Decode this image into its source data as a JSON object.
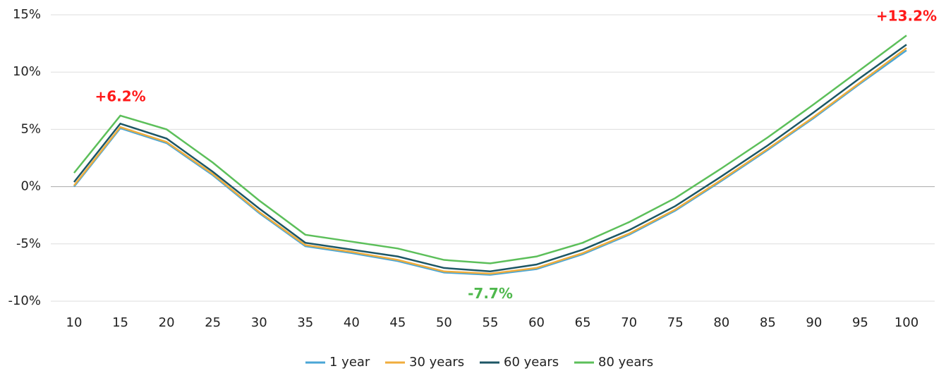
{
  "chart_data": {
    "type": "line",
    "categories": [
      "10",
      "15",
      "20",
      "25",
      "30",
      "35",
      "40",
      "45",
      "50",
      "55",
      "60",
      "65",
      "70",
      "75",
      "80",
      "85",
      "90",
      "95",
      "100"
    ],
    "series": [
      {
        "name": "1 year",
        "color": "#4aa6d6",
        "values": [
          0.0,
          5.1,
          3.8,
          1.0,
          -2.3,
          -5.2,
          -5.8,
          -6.5,
          -7.5,
          -7.7,
          -7.2,
          -5.9,
          -4.2,
          -2.1,
          0.5,
          3.2,
          6.0,
          9.0,
          11.9
        ]
      },
      {
        "name": "30 years",
        "color": "#f0ad3c",
        "values": [
          0.1,
          5.2,
          3.9,
          1.1,
          -2.2,
          -5.1,
          -5.7,
          -6.4,
          -7.4,
          -7.6,
          -7.1,
          -5.8,
          -4.1,
          -2.0,
          0.6,
          3.3,
          6.1,
          9.1,
          12.1
        ]
      },
      {
        "name": "60 years",
        "color": "#1d5665",
        "values": [
          0.4,
          5.5,
          4.2,
          1.3,
          -1.9,
          -4.9,
          -5.5,
          -6.1,
          -7.1,
          -7.4,
          -6.8,
          -5.5,
          -3.8,
          -1.7,
          0.9,
          3.6,
          6.5,
          9.5,
          12.4
        ]
      },
      {
        "name": "80 years",
        "color": "#5cbf5a",
        "values": [
          1.2,
          6.2,
          5.0,
          2.1,
          -1.2,
          -4.2,
          -4.8,
          -5.4,
          -6.4,
          -6.7,
          -6.1,
          -4.9,
          -3.1,
          -1.0,
          1.6,
          4.3,
          7.2,
          10.2,
          13.2
        ]
      }
    ],
    "ylim": [
      -10,
      15
    ],
    "yticks": [
      {
        "value": -10,
        "label": "-10%"
      },
      {
        "value": -5,
        "label": "-5%"
      },
      {
        "value": 0,
        "label": "0%"
      },
      {
        "value": 5,
        "label": "5%"
      },
      {
        "value": 10,
        "label": "10%"
      },
      {
        "value": 15,
        "label": "15%"
      }
    ],
    "grid": true,
    "legend": "bottom",
    "annotations": [
      {
        "text": "+6.2%",
        "category": "15",
        "value": 6.2,
        "color": "#ff1a1a",
        "position": "above"
      },
      {
        "text": "-7.7%",
        "category": "55",
        "value": -7.7,
        "color": "#4fb84d",
        "position": "below"
      },
      {
        "text": "+13.2%",
        "category": "100",
        "value": 13.2,
        "color": "#ff1a1a",
        "position": "above"
      }
    ]
  }
}
